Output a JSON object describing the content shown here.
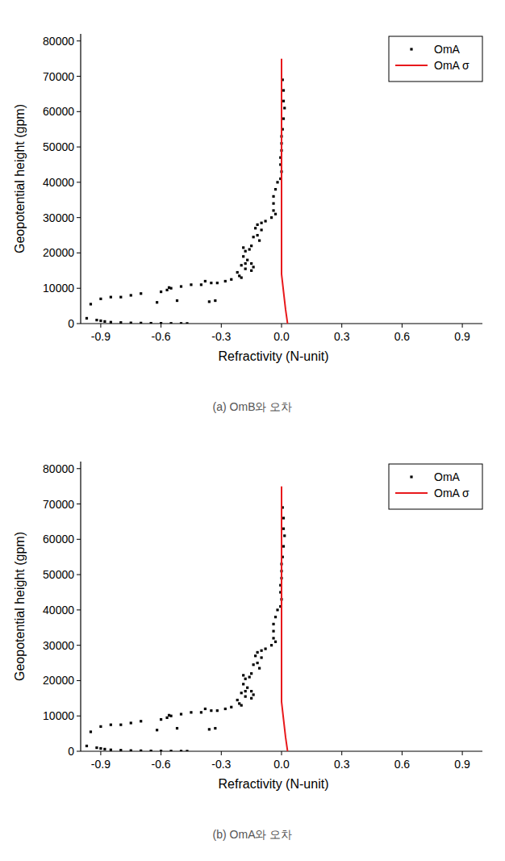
{
  "chart_data": [
    {
      "type": "scatter",
      "title": "(a) OmB와 오차",
      "x_label": "Refractivity (N-unit)",
      "y_label": "Geopotential height (gpm)",
      "xlim": [
        -1.0,
        1.0
      ],
      "ylim": [
        0,
        82000
      ],
      "xticks": [
        -0.9,
        -0.6,
        -0.3,
        {
          "value": 0,
          "label": "0.0"
        },
        0.3,
        0.6,
        0.9
      ],
      "yticks": [
        0,
        10000,
        20000,
        30000,
        40000,
        50000,
        60000,
        70000,
        80000
      ],
      "legend": "top-right",
      "series": [
        {
          "name": "OmA",
          "type": "scatter",
          "marker": "square",
          "color": "#000000",
          "x": [
            0.005,
            0.01,
            0.01,
            0.015,
            0.01,
            0.005,
            0.0,
            0.0,
            0.0,
            -0.005,
            -0.005,
            0.0,
            -0.005,
            -0.02,
            -0.03,
            -0.04,
            -0.04,
            -0.04,
            -0.03,
            -0.05,
            -0.08,
            -0.1,
            -0.12,
            -0.13,
            -0.1,
            -0.12,
            -0.14,
            -0.11,
            -0.15,
            -0.16,
            -0.19,
            -0.18,
            -0.19,
            -0.17,
            -0.18,
            -0.15,
            -0.14,
            -0.2,
            -0.18,
            -0.15,
            -0.22,
            -0.21,
            -0.2,
            -0.25,
            -0.28,
            -0.32,
            -0.35,
            -0.38,
            -0.4,
            -0.45,
            -0.5,
            -0.55,
            -0.57,
            -0.56,
            -0.6,
            -0.7,
            -0.75,
            -0.8,
            -0.85,
            -0.9,
            -0.95,
            -0.62,
            -0.52,
            -0.33,
            -0.36,
            -0.97,
            -0.92,
            -0.9,
            -0.88,
            -0.85,
            -0.8,
            -0.75,
            -0.7,
            -0.65,
            -0.6,
            -0.55,
            -0.5,
            -0.47
          ],
          "y": [
            69000,
            66000,
            63000,
            61000,
            58000,
            55000,
            53000,
            51000,
            49000,
            47000,
            45000,
            43000,
            41000,
            40000,
            38000,
            36000,
            34000,
            32000,
            31000,
            30000,
            29000,
            28500,
            28000,
            27000,
            26500,
            25000,
            24500,
            23500,
            22000,
            21000,
            21500,
            20500,
            19000,
            18000,
            17000,
            17000,
            16000,
            16500,
            15500,
            15000,
            14500,
            13500,
            13000,
            12500,
            12000,
            11500,
            11500,
            12000,
            11000,
            11000,
            10500,
            10000,
            9500,
            10200,
            9000,
            8500,
            8000,
            7500,
            7500,
            7000,
            5500,
            6000,
            6500,
            6500,
            6200,
            1500,
            1000,
            800,
            600,
            400,
            300,
            200,
            150,
            100,
            80,
            60,
            50,
            30
          ]
        },
        {
          "name": "OmA σ",
          "type": "line",
          "line_style": "solid",
          "color": "#e8191c",
          "x": [
            0.0,
            0.0,
            0.01,
            0.02,
            0.03
          ],
          "y": [
            75000,
            14000,
            9000,
            4000,
            0
          ]
        }
      ]
    },
    {
      "type": "scatter",
      "title": "(b) OmA와 오차",
      "x_label": "Refractivity (N-unit)",
      "y_label": "Geopotential height (gpm)",
      "xlim": [
        -1.0,
        1.0
      ],
      "ylim": [
        0,
        82000
      ],
      "xticks": [
        -0.9,
        -0.6,
        -0.3,
        {
          "value": 0,
          "label": "0.0"
        },
        0.3,
        0.6,
        0.9
      ],
      "yticks": [
        0,
        10000,
        20000,
        30000,
        40000,
        50000,
        60000,
        70000,
        80000
      ],
      "legend": "top-right",
      "series": [
        {
          "name": "OmA",
          "type": "scatter",
          "marker": "square",
          "color": "#000000",
          "x": [
            0.005,
            0.01,
            0.01,
            0.015,
            0.01,
            0.005,
            0.0,
            0.0,
            0.0,
            -0.005,
            -0.005,
            0.0,
            -0.005,
            -0.02,
            -0.03,
            -0.04,
            -0.04,
            -0.04,
            -0.03,
            -0.05,
            -0.08,
            -0.1,
            -0.12,
            -0.13,
            -0.1,
            -0.12,
            -0.14,
            -0.11,
            -0.15,
            -0.16,
            -0.19,
            -0.18,
            -0.19,
            -0.17,
            -0.18,
            -0.15,
            -0.14,
            -0.2,
            -0.18,
            -0.15,
            -0.22,
            -0.21,
            -0.2,
            -0.25,
            -0.28,
            -0.32,
            -0.35,
            -0.38,
            -0.4,
            -0.45,
            -0.5,
            -0.55,
            -0.57,
            -0.56,
            -0.6,
            -0.7,
            -0.75,
            -0.8,
            -0.85,
            -0.9,
            -0.95,
            -0.62,
            -0.52,
            -0.33,
            -0.36,
            -0.97,
            -0.92,
            -0.9,
            -0.88,
            -0.85,
            -0.8,
            -0.75,
            -0.7,
            -0.65,
            -0.6,
            -0.55,
            -0.5,
            -0.47
          ],
          "y": [
            69000,
            66000,
            63000,
            61000,
            58000,
            55000,
            53000,
            51000,
            49000,
            47000,
            45000,
            43000,
            41000,
            40000,
            38000,
            36000,
            34000,
            32000,
            31000,
            30000,
            29000,
            28500,
            28000,
            27000,
            26500,
            25000,
            24500,
            23500,
            22000,
            21000,
            21500,
            20500,
            19000,
            18000,
            17000,
            17000,
            16000,
            16500,
            15500,
            15000,
            14500,
            13500,
            13000,
            12500,
            12000,
            11500,
            11500,
            12000,
            11000,
            11000,
            10500,
            10000,
            9500,
            10200,
            9000,
            8500,
            8000,
            7500,
            7500,
            7000,
            5500,
            6000,
            6500,
            6500,
            6200,
            1500,
            1000,
            800,
            600,
            400,
            300,
            200,
            150,
            100,
            80,
            60,
            50,
            30
          ]
        },
        {
          "name": "OmA σ",
          "type": "line",
          "line_style": "solid",
          "color": "#e8191c",
          "x": [
            0.0,
            0.0,
            0.01,
            0.02,
            0.03
          ],
          "y": [
            75000,
            14000,
            9000,
            4000,
            0
          ]
        }
      ]
    }
  ]
}
